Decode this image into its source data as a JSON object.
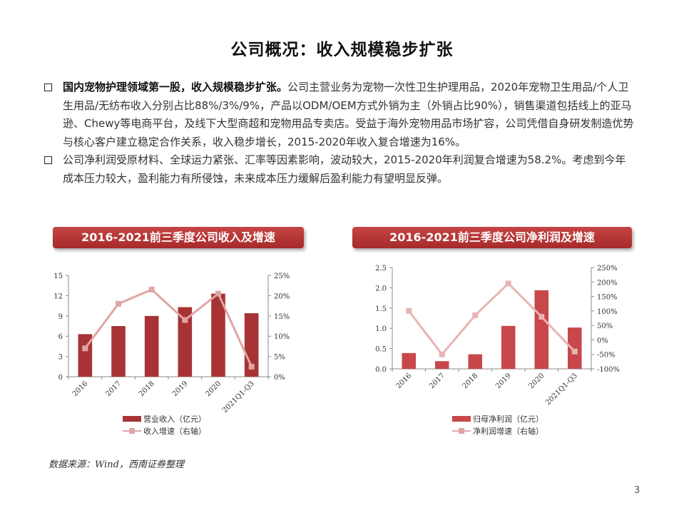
{
  "title": "公司概况：收入规模稳步扩张",
  "bullets": [
    {
      "bold": "国内宠物护理领域第一股，收入规模稳步扩张。",
      "text": "公司主营业务为宠物一次性卫生护理用品，2020年宠物卫生用品/个人卫生用品/无纺布收入分别占比88%/3%/9%，产品以ODM/OEM方式外销为主（外销占比90%），销售渠道包括线上的亚马逊、Chewy等电商平台，及线下大型商超和宠物用品专卖店。受益于海外宠物用品市场扩容，公司凭借自身研发制造优势与核心客户建立稳定合作关系，收入稳步增长，2015-2020年收入复合增速为16%。"
    },
    {
      "bold": "",
      "text": "公司净利润受原材料、全球运力紧张、汇率等因素影响，波动较大，2015-2020年利润复合增速为58.2%。考虑到今年成本压力较大，盈利能力有所侵蚀，未来成本压力缓解后盈利能力有望明显反弹。"
    }
  ],
  "chart_data": [
    {
      "type": "bar",
      "title": "2016-2021前三季度公司收入及增速",
      "categories": [
        "2016",
        "2017",
        "2018",
        "2019",
        "2020",
        "2021Q1-Q3"
      ],
      "series": [
        {
          "name": "营业收入（亿元）",
          "type": "bar",
          "axis": "left",
          "values": [
            6.3,
            7.5,
            9.0,
            10.3,
            12.3,
            9.4
          ]
        },
        {
          "name": "收入增速（右轴）",
          "type": "line",
          "axis": "right",
          "values": [
            7,
            18,
            21.5,
            14,
            20.5,
            2.5
          ]
        }
      ],
      "ylim": [
        0,
        15
      ],
      "yticks": [
        "0",
        "3",
        "6",
        "9",
        "12",
        "15"
      ],
      "y2lim": [
        0,
        25
      ],
      "y2ticks": [
        "0%",
        "5%",
        "10%",
        "15%",
        "20%",
        "25%"
      ],
      "bar_color": "#a73334",
      "line_color": "#e0a5a5",
      "grid": false
    },
    {
      "type": "bar",
      "title": "2016-2021前三季度公司净利润及增速",
      "categories": [
        "2016",
        "2017",
        "2018",
        "2019",
        "2020",
        "2021Q1-Q3"
      ],
      "series": [
        {
          "name": "归母净利润（亿元）",
          "type": "bar",
          "axis": "left",
          "values": [
            0.39,
            0.19,
            0.36,
            1.06,
            1.94,
            1.02
          ]
        },
        {
          "name": "净利润增速（右轴）",
          "type": "line",
          "axis": "right",
          "values": [
            100,
            -50,
            85,
            195,
            80,
            -40
          ]
        }
      ],
      "ylim": [
        0,
        2.5
      ],
      "yticks": [
        "0.0",
        "0.5",
        "1.0",
        "1.5",
        "2.0",
        "2.5"
      ],
      "y2lim": [
        -100,
        250
      ],
      "y2ticks": [
        "-100%",
        "-50%",
        "0%",
        "50%",
        "100%",
        "150%",
        "200%",
        "250%"
      ],
      "bar_color": "#c8474b",
      "line_color": "#e8b4b4",
      "grid": false
    }
  ],
  "source": "数据来源：Wind，西南证券整理",
  "page_number": "3"
}
